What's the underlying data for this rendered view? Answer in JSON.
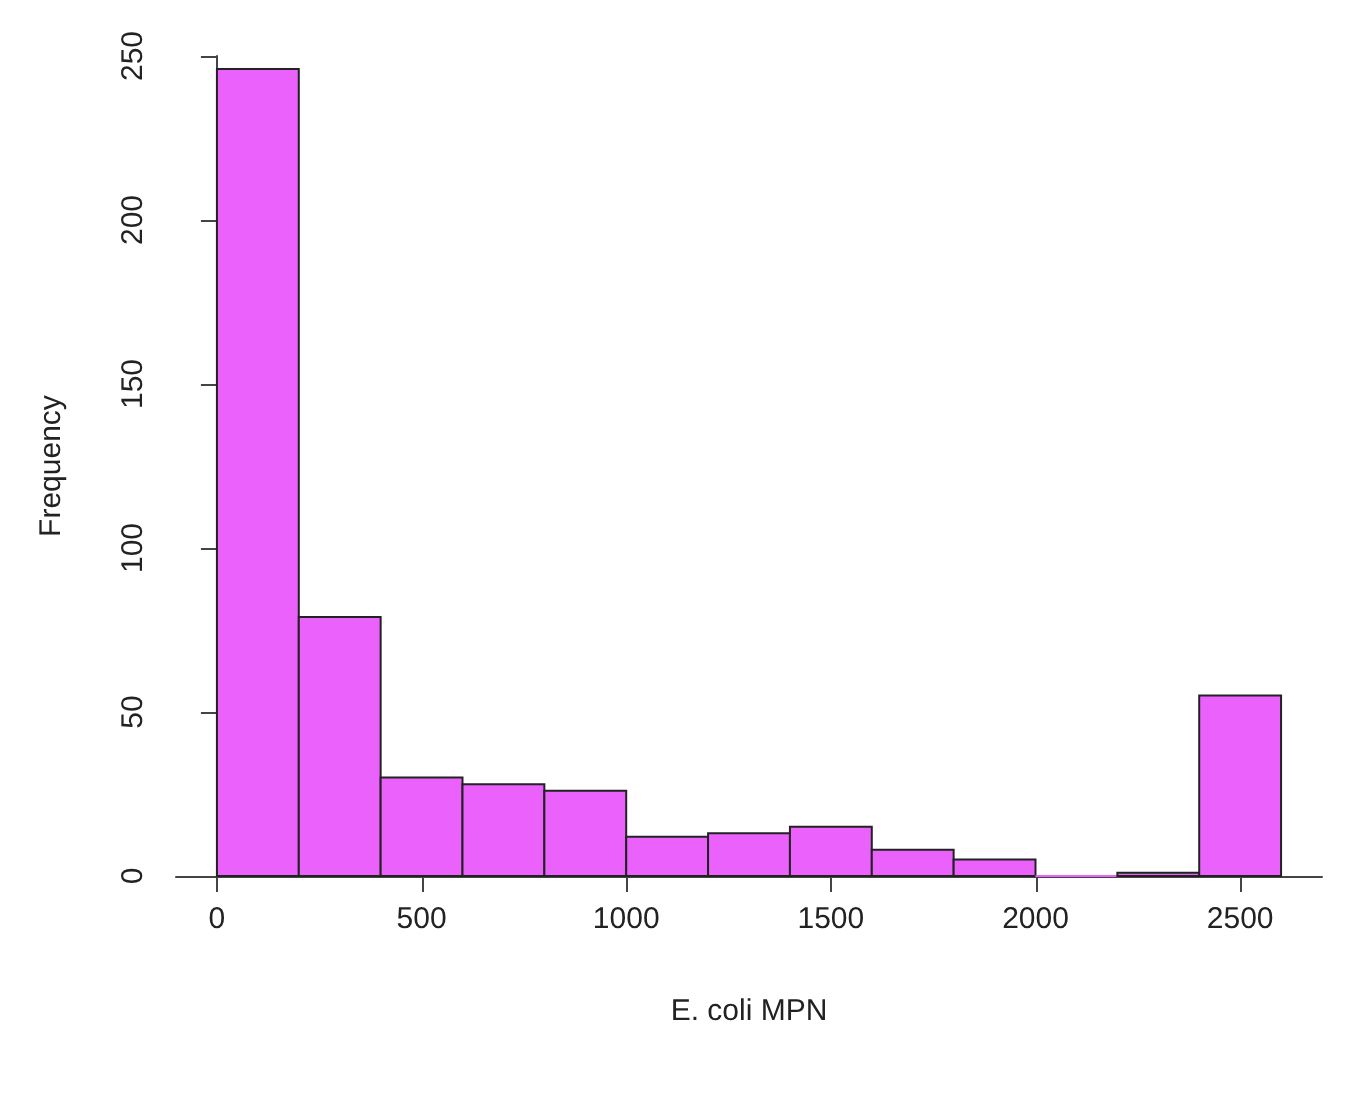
{
  "chart_data": {
    "type": "histogram",
    "xlabel": "E. coli MPN",
    "ylabel": "Frequency",
    "bins": [
      0,
      200,
      400,
      600,
      800,
      1000,
      1200,
      1400,
      1600,
      1800,
      2000,
      2200,
      2400,
      2600
    ],
    "values": [
      246,
      79,
      30,
      28,
      26,
      12,
      13,
      15,
      8,
      5,
      0,
      1,
      55
    ],
    "color": "#ea62fb",
    "xlim": [
      -100,
      2700
    ],
    "xticks": [
      0,
      500,
      1000,
      1500,
      2000,
      2500
    ],
    "ylim": [
      0,
      250
    ],
    "yticks": [
      0,
      50,
      100,
      150,
      200,
      250
    ],
    "grid": false
  }
}
